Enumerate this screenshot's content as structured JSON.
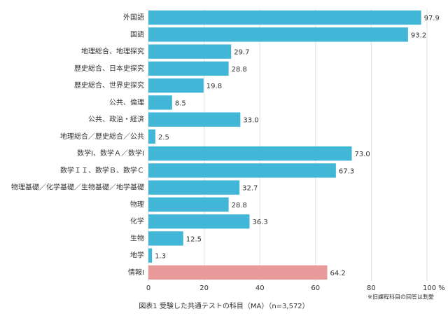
{
  "chart_data": {
    "type": "hbar",
    "title": "図表1 受験した共通テストの科目（MA）（n=3,572）",
    "note": "※旧課程科目の回答は割愛",
    "categories": [
      "外国語",
      "国語",
      "地理総合、地理探究",
      "歴史総合、日本史探究",
      "歴史総合、世界史探究",
      "公共、倫理",
      "公共、政治・経済",
      "地理総合／歴史総合／公共",
      "数学Ⅰ、数学Ａ／数学Ⅰ",
      "数学ＩＩ、数学Ｂ、数学Ｃ",
      "物理基礎／化学基礎／生物基礎／地学基礎",
      "物理",
      "化学",
      "生物",
      "地学",
      "情報Ⅰ"
    ],
    "values": [
      97.9,
      93.2,
      29.7,
      28.8,
      19.8,
      8.5,
      33,
      2.5,
      73,
      67.3,
      32.7,
      28.8,
      36.3,
      12.5,
      1.3,
      64.2
    ],
    "value_labels": [
      "97.9",
      "93.2",
      "29.7",
      "28.8",
      "19.8",
      "8.5",
      "33.0",
      "2.5",
      "73.0",
      "67.3",
      "32.7",
      "28.8",
      "36.3",
      "12.5",
      "1.3",
      "64.2"
    ],
    "colors": [
      "#41b6d6",
      "#41b6d6",
      "#41b6d6",
      "#41b6d6",
      "#41b6d6",
      "#41b6d6",
      "#41b6d6",
      "#41b6d6",
      "#41b6d6",
      "#41b6d6",
      "#41b6d6",
      "#41b6d6",
      "#41b6d6",
      "#41b6d6",
      "#41b6d6",
      "#e89a9a"
    ],
    "xlim": [
      0,
      100
    ],
    "xticks": [
      0,
      20,
      40,
      60,
      80,
      {
        "value": 100,
        "label": "100 %"
      }
    ],
    "grid": true
  }
}
